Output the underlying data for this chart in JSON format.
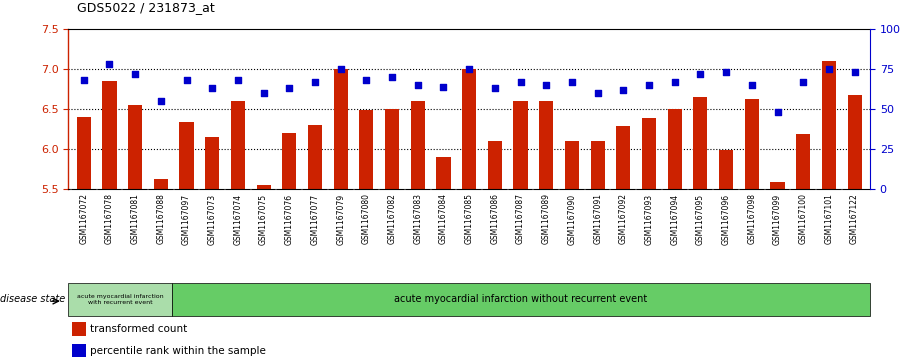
{
  "title": "GDS5022 / 231873_at",
  "samples": [
    "GSM1167072",
    "GSM1167078",
    "GSM1167081",
    "GSM1167088",
    "GSM1167097",
    "GSM1167073",
    "GSM1167074",
    "GSM1167075",
    "GSM1167076",
    "GSM1167077",
    "GSM1167079",
    "GSM1167080",
    "GSM1167082",
    "GSM1167083",
    "GSM1167084",
    "GSM1167085",
    "GSM1167086",
    "GSM1167087",
    "GSM1167089",
    "GSM1167090",
    "GSM1167091",
    "GSM1167092",
    "GSM1167093",
    "GSM1167094",
    "GSM1167095",
    "GSM1167096",
    "GSM1167098",
    "GSM1167099",
    "GSM1167100",
    "GSM1167101",
    "GSM1167122"
  ],
  "bar_values": [
    6.4,
    6.85,
    6.55,
    5.62,
    6.33,
    6.15,
    6.6,
    5.55,
    6.2,
    6.3,
    7.0,
    6.48,
    6.5,
    6.6,
    5.9,
    7.0,
    6.1,
    6.6,
    6.6,
    6.1,
    6.1,
    6.28,
    6.38,
    6.5,
    6.65,
    5.98,
    6.62,
    5.58,
    6.18,
    7.1,
    6.67
  ],
  "dot_values": [
    68,
    78,
    72,
    55,
    68,
    63,
    68,
    60,
    63,
    67,
    75,
    68,
    70,
    65,
    64,
    75,
    63,
    67,
    65,
    67,
    60,
    62,
    65,
    67,
    72,
    73,
    65,
    48,
    67,
    75,
    73
  ],
  "group1_count": 4,
  "group1_label": "acute myocardial infarction\nwith recurrent event",
  "group2_label": "acute myocardial infarction without recurrent event",
  "ylim_left": [
    5.5,
    7.5
  ],
  "ylim_right": [
    0,
    100
  ],
  "yticks_left": [
    5.5,
    6.0,
    6.5,
    7.0,
    7.5
  ],
  "yticks_right": [
    0,
    25,
    50,
    75,
    100
  ],
  "bar_color": "#cc2200",
  "dot_color": "#0000cc",
  "bg_color": "#ffffff",
  "tick_area_bg": "#c8c8c8",
  "group1_bg": "#aaddaa",
  "group2_bg": "#66cc66",
  "legend_bar_label": "transformed count",
  "legend_dot_label": "percentile rank within the sample",
  "disease_state_label": "disease state"
}
